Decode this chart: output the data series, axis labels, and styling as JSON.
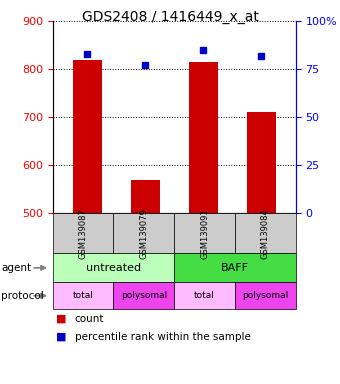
{
  "title": "GDS2408 / 1416449_x_at",
  "samples": [
    "GSM139087",
    "GSM139079",
    "GSM139091",
    "GSM139084"
  ],
  "bar_values": [
    820,
    570,
    815,
    710
  ],
  "percentile_values": [
    83,
    77,
    85,
    82
  ],
  "bar_color": "#cc0000",
  "percentile_color": "#0000cc",
  "ylim_left": [
    500,
    900
  ],
  "ylim_right": [
    0,
    100
  ],
  "yticks_left": [
    500,
    600,
    700,
    800,
    900
  ],
  "yticks_right": [
    0,
    25,
    50,
    75,
    100
  ],
  "yticklabels_right": [
    "0",
    "25",
    "50",
    "75",
    "100%"
  ],
  "bar_bottom": 500,
  "bar_width": 0.5,
  "title_fontsize": 10,
  "tick_fontsize": 8,
  "agent_color_untreated": "#bbffbb",
  "agent_color_baff": "#44dd44",
  "protocol_color_total": "#ffbbff",
  "protocol_color_polysomal": "#ee44ee",
  "sample_cell_color": "#cccccc"
}
